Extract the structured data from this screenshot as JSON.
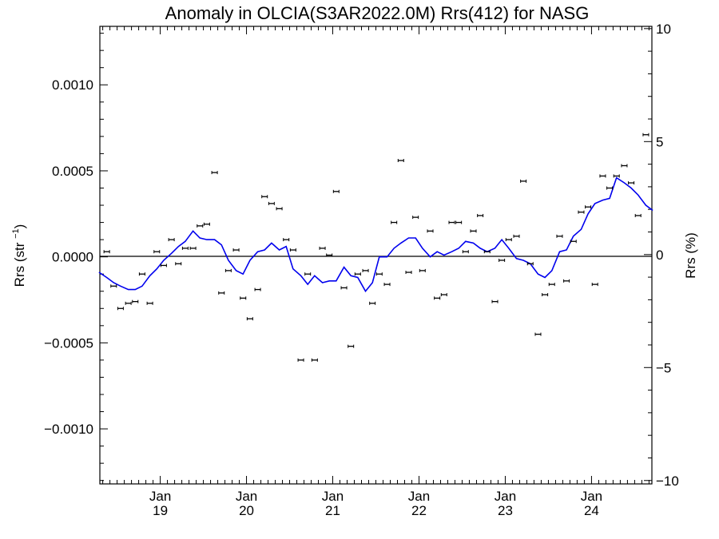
{
  "chart_data": {
    "type": "scatter",
    "title": "Anomaly in OLCIA(S3AR2022.0M) Rrs(412) for NASG",
    "ylabel_left": "Rrs (str⁻¹)",
    "ylabel_right": "Rrs (%)",
    "xlim": [
      2018.3,
      2024.7
    ],
    "ylim_left": [
      -0.00132,
      0.00134
    ],
    "ylim_right": [
      -10.15,
      10.1
    ],
    "zero_line": true,
    "left_ticks": [
      {
        "value": 0.001,
        "label": "0.0010"
      },
      {
        "value": 0.0005,
        "label": "0.0005"
      },
      {
        "value": 0.0,
        "label": "0.0000"
      },
      {
        "value": -0.0005,
        "label": "−0.0005"
      },
      {
        "value": -0.001,
        "label": "−0.0010"
      }
    ],
    "right_ticks": [
      {
        "value": 10,
        "label": "10"
      },
      {
        "value": 5,
        "label": "5"
      },
      {
        "value": 0,
        "label": "0"
      },
      {
        "value": -5,
        "label": "−5"
      },
      {
        "value": -10,
        "label": "−10"
      }
    ],
    "x_ticks": [
      {
        "value": 2019.0,
        "month": "Jan",
        "year": "19"
      },
      {
        "value": 2020.0,
        "month": "Jan",
        "year": "20"
      },
      {
        "value": 2021.0,
        "month": "Jan",
        "year": "21"
      },
      {
        "value": 2022.0,
        "month": "Jan",
        "year": "22"
      },
      {
        "value": 2023.0,
        "month": "Jan",
        "year": "23"
      },
      {
        "value": 2024.0,
        "month": "Jan",
        "year": "24"
      }
    ],
    "series": [
      {
        "kind": "points_with_error_bars",
        "color": "#000000",
        "x": [
          2018.29,
          2018.38,
          2018.46,
          2018.54,
          2018.63,
          2018.71,
          2018.79,
          2018.88,
          2018.96,
          2019.04,
          2019.13,
          2019.21,
          2019.29,
          2019.38,
          2019.46,
          2019.54,
          2019.63,
          2019.71,
          2019.79,
          2019.88,
          2019.96,
          2020.04,
          2020.13,
          2020.21,
          2020.29,
          2020.38,
          2020.46,
          2020.54,
          2020.63,
          2020.71,
          2020.79,
          2020.88,
          2020.96,
          2021.04,
          2021.13,
          2021.21,
          2021.29,
          2021.38,
          2021.46,
          2021.54,
          2021.63,
          2021.71,
          2021.79,
          2021.88,
          2021.96,
          2022.04,
          2022.13,
          2022.21,
          2022.29,
          2022.38,
          2022.46,
          2022.54,
          2022.63,
          2022.71,
          2022.79,
          2022.88,
          2022.96,
          2023.04,
          2023.13,
          2023.21,
          2023.29,
          2023.38,
          2023.46,
          2023.54,
          2023.63,
          2023.71,
          2023.79,
          2023.88,
          2023.96,
          2024.04,
          2024.13,
          2024.21,
          2024.29,
          2024.38,
          2024.46,
          2024.54,
          2024.63,
          2024.71
        ],
        "y": [
          -3e-05,
          3e-05,
          -0.00017,
          -0.0003,
          -0.00027,
          -0.00026,
          -0.0001,
          -0.00027,
          3e-05,
          -5e-05,
          0.0001,
          -4e-05,
          5e-05,
          5e-05,
          0.00018,
          0.00019,
          0.00049,
          -0.00021,
          -8e-05,
          4e-05,
          -0.00024,
          -0.00036,
          -0.00019,
          0.00035,
          0.00031,
          0.00028,
          0.0001,
          4e-05,
          -0.0006,
          -0.0001,
          -0.0006,
          5e-05,
          1e-05,
          0.00038,
          -0.00018,
          -0.00052,
          -0.0001,
          -8e-05,
          -0.00027,
          -0.0001,
          -0.00016,
          0.0002,
          0.00056,
          -9e-05,
          0.00023,
          -8e-05,
          0.00015,
          -0.00024,
          -0.00022,
          0.0002,
          0.0002,
          3e-05,
          0.00015,
          0.00024,
          3e-05,
          -0.00026,
          -2e-05,
          0.0001,
          0.00012,
          0.00044,
          -4e-05,
          -0.00045,
          -0.00022,
          -0.00016,
          0.00012,
          -0.00014,
          9e-05,
          0.00026,
          0.00029,
          -0.00016,
          0.00047,
          0.0004,
          0.00047,
          0.00053,
          0.00043,
          0.00024,
          0.00071,
          0.00017
        ]
      },
      {
        "kind": "line",
        "color": "#0000ee",
        "x": [
          2018.29,
          2018.38,
          2018.46,
          2018.54,
          2018.63,
          2018.71,
          2018.79,
          2018.88,
          2018.96,
          2019.04,
          2019.13,
          2019.21,
          2019.29,
          2019.38,
          2019.46,
          2019.54,
          2019.63,
          2019.71,
          2019.79,
          2019.88,
          2019.96,
          2020.04,
          2020.13,
          2020.21,
          2020.29,
          2020.38,
          2020.46,
          2020.54,
          2020.63,
          2020.71,
          2020.79,
          2020.88,
          2020.96,
          2021.04,
          2021.13,
          2021.21,
          2021.29,
          2021.38,
          2021.46,
          2021.54,
          2021.63,
          2021.71,
          2021.79,
          2021.88,
          2021.96,
          2022.04,
          2022.13,
          2022.21,
          2022.29,
          2022.38,
          2022.46,
          2022.54,
          2022.63,
          2022.71,
          2022.79,
          2022.88,
          2022.96,
          2023.04,
          2023.13,
          2023.21,
          2023.29,
          2023.38,
          2023.46,
          2023.54,
          2023.63,
          2023.71,
          2023.79,
          2023.88,
          2023.96,
          2024.04,
          2024.13,
          2024.21,
          2024.29,
          2024.38,
          2024.46,
          2024.54,
          2024.63,
          2024.71
        ],
        "y": [
          -9e-05,
          -0.00012,
          -0.00015,
          -0.00017,
          -0.00019,
          -0.00019,
          -0.00017,
          -0.00011,
          -7e-05,
          -2e-05,
          2e-05,
          6e-05,
          9e-05,
          0.00015,
          0.00011,
          0.0001,
          0.0001,
          7e-05,
          -2e-05,
          -8e-05,
          -0.0001,
          -2e-05,
          3e-05,
          4e-05,
          8e-05,
          4e-05,
          6e-05,
          -7e-05,
          -0.00011,
          -0.00016,
          -0.00011,
          -0.00015,
          -0.00014,
          -0.00014,
          -6e-05,
          -0.00011,
          -0.00012,
          -0.0002,
          -0.00015,
          0.0,
          0.0,
          5e-05,
          8e-05,
          0.00011,
          0.00011,
          5e-05,
          0.0,
          3e-05,
          1e-05,
          3e-05,
          5e-05,
          9e-05,
          8e-05,
          5e-05,
          3e-05,
          5e-05,
          0.0001,
          5e-05,
          -1e-05,
          -2e-05,
          -4e-05,
          -0.0001,
          -0.00012,
          -8e-05,
          3e-05,
          4e-05,
          0.00012,
          0.00016,
          0.00025,
          0.00031,
          0.00033,
          0.00034,
          0.00046,
          0.00043,
          0.0004,
          0.00036,
          0.0003,
          0.00027
        ]
      }
    ]
  }
}
